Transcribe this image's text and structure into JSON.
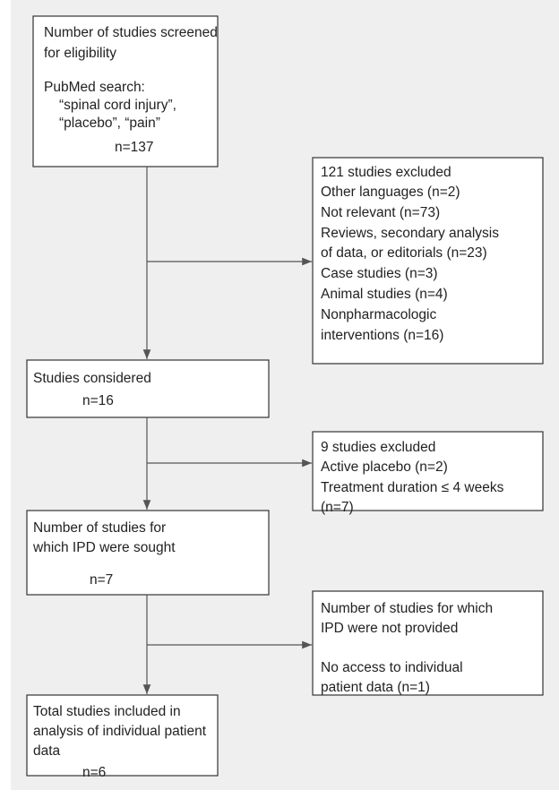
{
  "boxes": [
    {
      "lines": [
        "Number of studies screened",
        "for eligibility",
        "PubMed search:",
        "“spinal cord injury”,",
        "“placebo”, “pain”",
        "n=137"
      ]
    },
    {
      "lines": [
        "121 studies excluded",
        "Other languages (n=2)",
        "Not relevant (n=73)",
        "Reviews, secondary analysis",
        "of data, or editorials (n=23)",
        "Case studies (n=3)",
        "Animal studies (n=4)",
        "Nonpharmacologic",
        "interventions (n=16)"
      ]
    },
    {
      "lines": [
        "Studies considered",
        "n=16"
      ]
    },
    {
      "lines": [
        "9 studies excluded",
        "Active placebo (n=2)",
        "Treatment duration ≤ 4 weeks",
        "(n=7)"
      ]
    },
    {
      "lines": [
        "Number of studies for",
        "which IPD were sought",
        "n=7"
      ]
    },
    {
      "lines": [
        "Number of studies for which",
        "IPD were not provided",
        "No access to individual",
        "patient data (n=1)"
      ]
    },
    {
      "lines": [
        "Total studies included in",
        "analysis of individual patient",
        "data",
        "n=6"
      ]
    }
  ]
}
